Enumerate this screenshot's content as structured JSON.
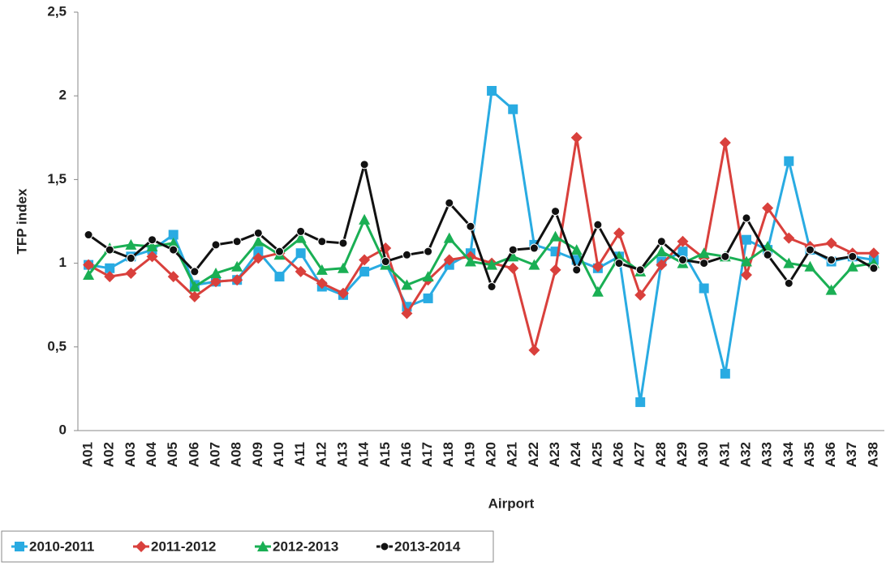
{
  "chart_data": {
    "type": "line",
    "y_label": "TFP index",
    "x_label": "Airport",
    "categories": [
      "A01",
      "A02",
      "A03",
      "A04",
      "A05",
      "A06",
      "A07",
      "A08",
      "A09",
      "A10",
      "A11",
      "A12",
      "A13",
      "A14",
      "A15",
      "A16",
      "A17",
      "A18",
      "A19",
      "A20",
      "A21",
      "A22",
      "A23",
      "A24",
      "A25",
      "A26",
      "A27",
      "A28",
      "A29",
      "A30",
      "A31",
      "A32",
      "A33",
      "A34",
      "A35",
      "A36",
      "A37",
      "A38"
    ],
    "series": [
      {
        "name": "2010-2011",
        "color": "#29abe2",
        "marker": "square",
        "values": [
          0.99,
          0.97,
          1.04,
          1.08,
          1.17,
          0.87,
          0.89,
          0.9,
          1.07,
          0.92,
          1.06,
          0.86,
          0.81,
          0.95,
          1.0,
          0.74,
          0.79,
          0.99,
          1.06,
          2.03,
          1.92,
          1.11,
          1.07,
          1.02,
          0.97,
          1.04,
          0.17,
          1.01,
          1.07,
          0.85,
          0.34,
          1.14,
          1.08,
          1.61,
          1.08,
          1.01,
          1.04,
          1.02
        ]
      },
      {
        "name": "2011-2012",
        "color": "#d9403c",
        "marker": "diamond",
        "values": [
          0.99,
          0.92,
          0.94,
          1.04,
          0.92,
          0.8,
          0.89,
          0.9,
          1.03,
          1.06,
          0.95,
          0.88,
          0.82,
          1.02,
          1.09,
          0.7,
          0.9,
          1.02,
          1.04,
          1.0,
          0.97,
          0.48,
          0.96,
          1.75,
          0.98,
          1.18,
          0.81,
          0.99,
          1.13,
          1.03,
          1.72,
          0.93,
          1.33,
          1.15,
          1.1,
          1.12,
          1.06,
          1.06
        ]
      },
      {
        "name": "2012-2013",
        "color": "#1aaf54",
        "marker": "triangle",
        "values": [
          0.93,
          1.09,
          1.11,
          1.1,
          1.12,
          0.86,
          0.94,
          0.98,
          1.13,
          1.05,
          1.15,
          0.96,
          0.97,
          1.26,
          0.99,
          0.87,
          0.92,
          1.15,
          1.01,
          0.99,
          1.04,
          0.99,
          1.16,
          1.08,
          0.83,
          1.04,
          0.95,
          1.07,
          1.0,
          1.06,
          1.04,
          1.01,
          1.1,
          1.0,
          0.98,
          0.84,
          0.98,
          1.0
        ]
      },
      {
        "name": "2013-2014",
        "color": "#111111",
        "marker": "circle",
        "values": [
          1.17,
          1.08,
          1.03,
          1.14,
          1.08,
          0.95,
          1.11,
          1.13,
          1.18,
          1.07,
          1.19,
          1.13,
          1.12,
          1.59,
          1.01,
          1.05,
          1.07,
          1.36,
          1.22,
          0.86,
          1.08,
          1.09,
          1.31,
          0.96,
          1.23,
          1.0,
          0.96,
          1.13,
          1.02,
          1.0,
          1.04,
          1.27,
          1.05,
          0.88,
          1.08,
          1.02,
          1.04,
          0.97
        ]
      }
    ],
    "ylim": [
      0,
      2.5
    ],
    "yticks": [
      0,
      {
        "value": 0.5,
        "label": "0,5"
      },
      1,
      {
        "value": 1.5,
        "label": "1,5"
      },
      2,
      {
        "value": 2.5,
        "label": "2,5"
      }
    ],
    "grid": false,
    "legend": "bottom-left"
  }
}
